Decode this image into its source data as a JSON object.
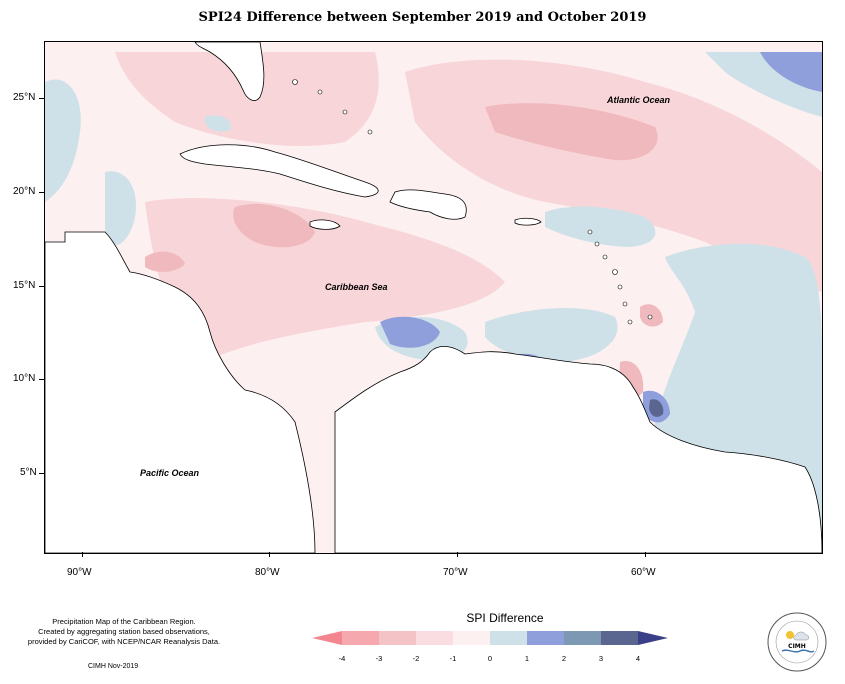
{
  "title": "SPI24 Difference between September 2019 and October 2019",
  "map": {
    "labels": {
      "atlantic": "Atlantic Ocean",
      "caribbean": "Caribbean Sea",
      "pacific": "Pacific Ocean"
    },
    "x_axis": [
      "90°W",
      "80°W",
      "70°W",
      "60°W"
    ],
    "y_axis": [
      "25°N",
      "20°N",
      "15°N",
      "10°N",
      "5°N"
    ]
  },
  "legend": {
    "title": "SPI Difference",
    "values": [
      "-4",
      "-3",
      "-2",
      "-1",
      "0",
      "1",
      "2",
      "3",
      "4"
    ],
    "colors": [
      "#f2858e",
      "#f5a9ae",
      "#f3c3c6",
      "#fadde0",
      "#fdf0f1",
      "#cfe1e8",
      "#8f9fdc",
      "#7d98b3",
      "#5a6690",
      "#3b3f87"
    ]
  },
  "footer": {
    "line1": "Precipitation Map of the Caribbean Region.",
    "line2": "Created by aggregating station based observations,",
    "line3": "provided by CariCOF, with NCEP/NCAR Reanalysis Data.",
    "credit": "CIMH Nov-2019"
  },
  "logo": {
    "text": "CIMH"
  }
}
